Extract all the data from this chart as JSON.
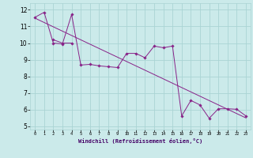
{
  "background_color": "#cbeaea",
  "grid_color": "#aad4d4",
  "line_color": "#882288",
  "xlabel": "Windchill (Refroidissement éolien,°C)",
  "xlim": [
    -0.5,
    23.5
  ],
  "ylim": [
    4.8,
    12.4
  ],
  "yticks": [
    5,
    6,
    7,
    8,
    9,
    10,
    11,
    12
  ],
  "xticks": [
    0,
    1,
    2,
    3,
    4,
    5,
    6,
    7,
    8,
    9,
    10,
    11,
    12,
    13,
    14,
    15,
    16,
    17,
    18,
    19,
    20,
    21,
    22,
    23
  ],
  "line1_x": [
    0,
    23
  ],
  "line1_y": [
    11.5,
    5.5
  ],
  "line2_x": [
    0,
    1,
    2,
    3,
    4,
    5,
    6,
    7,
    8,
    9,
    10,
    11,
    12,
    13,
    14,
    15,
    16,
    17,
    18,
    19,
    20,
    21,
    22,
    23
  ],
  "line2_y": [
    11.55,
    11.85,
    10.0,
    9.95,
    11.72,
    8.68,
    8.72,
    8.63,
    8.58,
    8.53,
    9.38,
    9.38,
    9.12,
    9.82,
    9.72,
    9.82,
    5.62,
    6.55,
    6.28,
    5.48,
    6.05,
    6.05,
    6.02,
    5.62
  ],
  "line3_x": [
    2,
    3,
    4
  ],
  "line3_y": [
    10.2,
    10.0,
    10.0
  ]
}
